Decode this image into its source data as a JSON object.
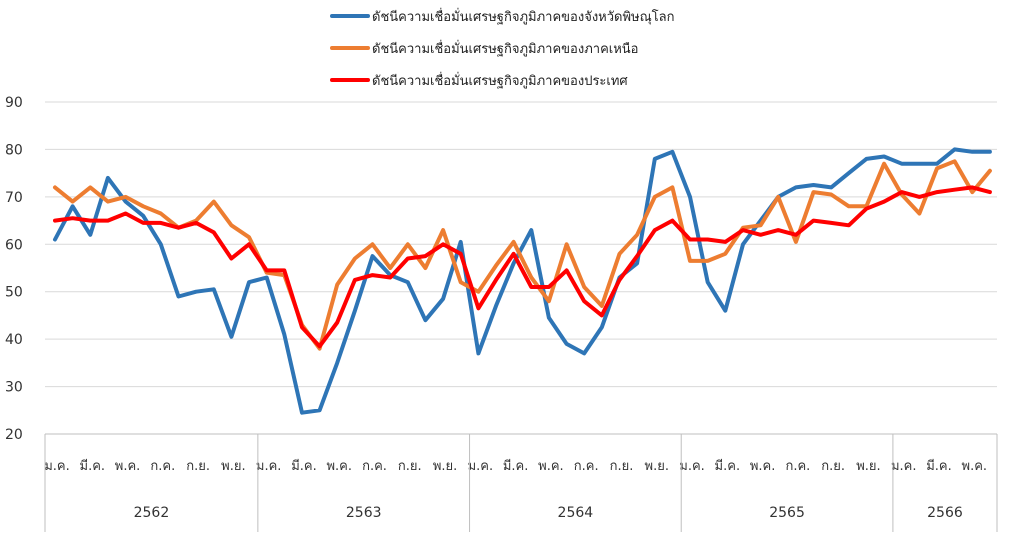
{
  "chart_data": {
    "type": "line",
    "ylim": [
      20,
      90
    ],
    "yticks": [
      20,
      30,
      40,
      50,
      60,
      70,
      80,
      90
    ],
    "month_labels": [
      "ม.ค.",
      "มี.ค.",
      "พ.ค.",
      "ก.ค.",
      "ก.ย.",
      "พ.ย."
    ],
    "year_groups": [
      {
        "year": "2562",
        "months": 12
      },
      {
        "year": "2563",
        "months": 12
      },
      {
        "year": "2564",
        "months": 12
      },
      {
        "year": "2565",
        "months": 12
      },
      {
        "year": "2566",
        "months": 6
      }
    ],
    "grid": "horizontal",
    "legend_position": "top-center",
    "series": [
      {
        "name": "ดัชนีความเชื่อมั่นเศรษฐกิจภูมิภาคของจังหวัดพิษณุโลก",
        "color": "#2E75B6",
        "values": [
          61,
          68,
          62,
          74,
          69,
          66,
          60,
          49,
          50,
          50.5,
          40.5,
          52,
          53,
          41,
          24.5,
          25,
          35,
          46,
          57.5,
          53.5,
          52,
          44,
          48.5,
          60.5,
          37,
          47,
          56,
          63,
          44.5,
          39,
          37,
          42.5,
          53,
          56,
          78,
          79.5,
          70,
          52,
          46,
          60,
          65,
          70,
          72,
          72.5,
          72,
          75,
          78,
          78.5,
          77,
          77,
          77,
          80,
          79.5,
          79.5
        ]
      },
      {
        "name": "ดัชนีความเชื่อมั่นเศรษฐกิจภูมิภาคของภาคเหนือ",
        "color": "#ED7D31",
        "values": [
          72,
          69,
          72,
          69,
          70,
          68,
          66.5,
          63.5,
          65,
          69,
          64,
          61.5,
          54,
          53.5,
          43,
          38,
          51.5,
          57,
          60,
          55,
          60,
          55,
          63,
          52,
          50,
          55.5,
          60.5,
          53,
          48,
          60,
          51,
          47,
          58,
          62,
          70,
          72,
          56.5,
          56.5,
          58,
          63.5,
          64,
          70,
          60.5,
          71,
          70.5,
          68,
          68,
          77,
          70.5,
          66.5,
          76,
          77.5,
          71,
          75.5
        ]
      },
      {
        "name": "ดัชนีความเชื่อมั่นเศรษฐกิจภูมิภาคของประเทศ",
        "color": "#FF0000",
        "values": [
          65,
          65.5,
          65,
          65,
          66.5,
          64.5,
          64.5,
          63.5,
          64.5,
          62.5,
          57,
          60,
          54.5,
          54.5,
          42.5,
          38.5,
          43.5,
          52.5,
          53.5,
          53,
          57,
          57.5,
          60,
          58,
          46.5,
          52.5,
          58,
          51,
          51,
          54.5,
          48,
          45,
          52.5,
          57.5,
          63,
          65,
          61,
          61,
          60.5,
          63,
          62,
          63,
          62,
          65,
          64.5,
          64,
          67.5,
          69,
          71,
          70,
          71,
          71.5,
          72,
          71
        ]
      }
    ]
  }
}
